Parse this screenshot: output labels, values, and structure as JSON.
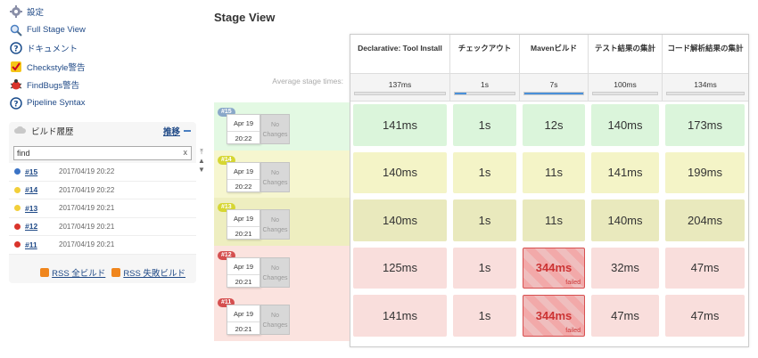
{
  "sidebar": {
    "links": [
      {
        "label": "設定",
        "icon": "gear-icon"
      },
      {
        "label": "Full Stage View",
        "icon": "magnifier-icon"
      },
      {
        "label": "ドキュメント",
        "icon": "help-icon"
      },
      {
        "label": "Checkstyle警告",
        "icon": "checkstyle-icon"
      },
      {
        "label": "FindBugs警告",
        "icon": "bug-icon"
      },
      {
        "label": "Pipeline Syntax",
        "icon": "help-icon"
      }
    ]
  },
  "build_history": {
    "title": "ビルド履歴",
    "trend_label": "推移",
    "search_value": "find",
    "clear_label": "x",
    "rows": [
      {
        "num": "#15",
        "date": "2017/04/19 20:22",
        "status_color": "#3b73c5"
      },
      {
        "num": "#14",
        "date": "2017/04/19 20:22",
        "status_color": "#f2cf3a"
      },
      {
        "num": "#13",
        "date": "2017/04/19 20:21",
        "status_color": "#f2cf3a"
      },
      {
        "num": "#12",
        "date": "2017/04/19 20:21",
        "status_color": "#d9342b"
      },
      {
        "num": "#11",
        "date": "2017/04/19 20:21",
        "status_color": "#d9342b"
      }
    ],
    "rss_all": "RSS 全ビルド",
    "rss_failed": "RSS 失敗ビルド"
  },
  "stage_view": {
    "title": "Stage View",
    "avg_label": "Average stage times:",
    "stages": [
      {
        "name": "Declarative: Tool Install",
        "avg": "137ms",
        "avg_fill": 0
      },
      {
        "name": "チェックアウト",
        "avg": "1s",
        "avg_fill": 0.2
      },
      {
        "name": "Mavenビルド",
        "avg": "7s",
        "avg_fill": 1.0
      },
      {
        "name": "テスト結果の集計",
        "avg": "100ms",
        "avg_fill": 0
      },
      {
        "name": "コード解析結果の集計",
        "avg": "134ms",
        "avg_fill": 0
      }
    ],
    "builds": [
      {
        "badge": "#15",
        "date": "Apr 19",
        "time": "20:22",
        "changes": "No Changes",
        "badge_color": "#8aa8c9",
        "row_color": "#e3f9e3",
        "stage_color": "#dbf5db",
        "cells": [
          {
            "v": "141ms"
          },
          {
            "v": "1s"
          },
          {
            "v": "12s"
          },
          {
            "v": "140ms"
          },
          {
            "v": "173ms"
          }
        ]
      },
      {
        "badge": "#14",
        "date": "Apr 19",
        "time": "20:22",
        "changes": "No Changes",
        "badge_color": "#d6d632",
        "row_color": "#f6f6cf",
        "stage_color": "#f4f4c7",
        "cells": [
          {
            "v": "140ms"
          },
          {
            "v": "1s"
          },
          {
            "v": "11s"
          },
          {
            "v": "141ms"
          },
          {
            "v": "199ms"
          }
        ]
      },
      {
        "badge": "#13",
        "date": "Apr 19",
        "time": "20:21",
        "changes": "No Changes",
        "badge_color": "#d6d632",
        "row_color": "#eeeec0",
        "stage_color": "#e9e9bd",
        "cells": [
          {
            "v": "140ms"
          },
          {
            "v": "1s"
          },
          {
            "v": "11s"
          },
          {
            "v": "140ms"
          },
          {
            "v": "204ms"
          }
        ]
      },
      {
        "badge": "#12",
        "date": "Apr 19",
        "time": "20:21",
        "changes": "No Changes",
        "badge_color": "#d54f4f",
        "row_color": "#fbe3df",
        "stage_color": "#f9dedc",
        "cells": [
          {
            "v": "125ms"
          },
          {
            "v": "1s"
          },
          {
            "v": "344ms",
            "failed": true
          },
          {
            "v": "32ms"
          },
          {
            "v": "47ms"
          }
        ]
      },
      {
        "badge": "#11",
        "date": "Apr 19",
        "time": "20:21",
        "changes": "No Changes",
        "badge_color": "#d54f4f",
        "row_color": "#fbe3df",
        "stage_color": "#f9dedc",
        "cells": [
          {
            "v": "141ms"
          },
          {
            "v": "1s"
          },
          {
            "v": "344ms",
            "failed": true
          },
          {
            "v": "47ms"
          },
          {
            "v": "47ms"
          }
        ]
      }
    ],
    "failed_label": "failed"
  }
}
